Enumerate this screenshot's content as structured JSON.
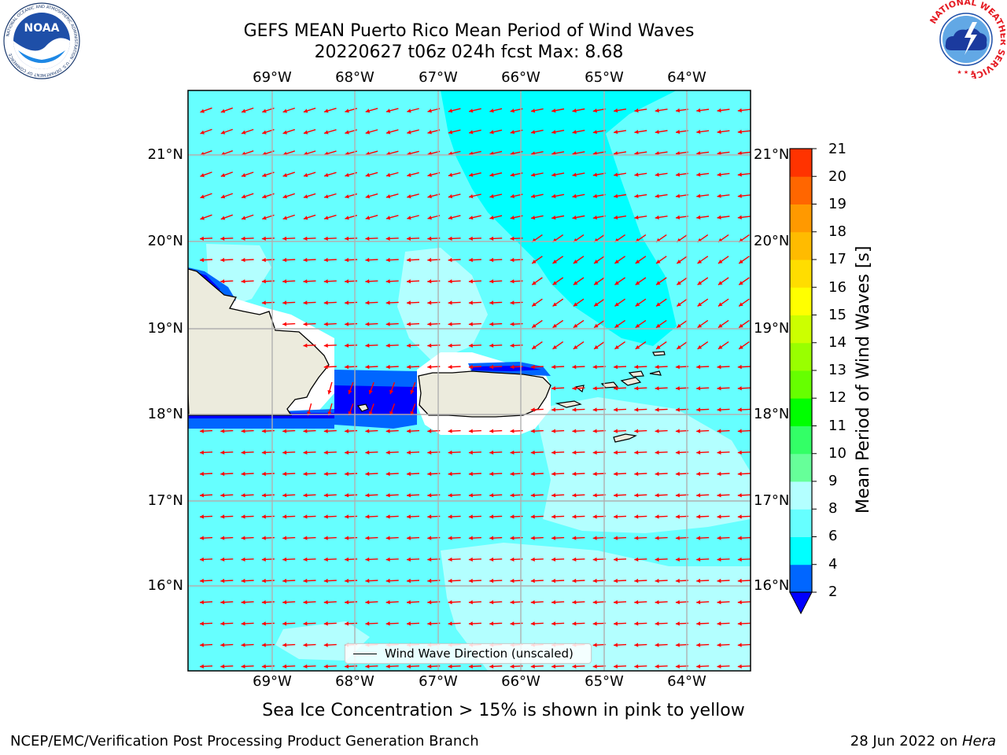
{
  "title": {
    "line1": "GEFS MEAN Puerto Rico Mean Period of Wind Waves",
    "line2": "20220627 t06z 024h fcst   Max: 8.68"
  },
  "map": {
    "lon_labels": [
      "69°W",
      "68°W",
      "67°W",
      "66°W",
      "65°W",
      "64°W"
    ],
    "lat_labels": [
      "21°N",
      "20°N",
      "19°N",
      "18°N",
      "17°N",
      "16°N"
    ],
    "legend_label": "Wind Wave Direction (unscaled)",
    "arrow_color": "#ff0000",
    "land_color": "#ecebdd",
    "islands": [
      "Hispaniola",
      "Puerto Rico",
      "Virgin Islands",
      "Mona Island",
      "St. Croix"
    ]
  },
  "colorbar": {
    "label": "Mean Period of Wind Waves [s]",
    "ticks": [
      "2",
      "4",
      "6",
      "8",
      "9",
      "10",
      "11",
      "12",
      "13",
      "14",
      "15",
      "16",
      "17",
      "18",
      "19",
      "20",
      "21"
    ],
    "bin_colors": [
      "#0066ff",
      "#00ffff",
      "#66ffff",
      "#b3ffff",
      "#66ff99",
      "#33ff66",
      "#00ff00",
      "#66ff00",
      "#99ff00",
      "#ccff00",
      "#ffff00",
      "#ffdd00",
      "#ffbb00",
      "#ff9900",
      "#ff6600",
      "#ff3300"
    ],
    "under_color": "#0000ff"
  },
  "subtitle": "Sea Ice Concentration > 15% is shown in pink to yellow",
  "footer": {
    "left": "NCEP/EMC/Verification Post Processing Product Generation Branch",
    "right_prefix": "28 Jun 2022 on ",
    "right_host": "Hera"
  },
  "logos": {
    "noaa_text": "NOAA",
    "noaa_ring_text": "NATIONAL OCEANIC AND ATMOSPHERIC ADMINISTRATION · U.S. DEPARTMENT OF COMMERCE",
    "nws_ring_text": "NATIONAL WEATHER SERVICE"
  }
}
